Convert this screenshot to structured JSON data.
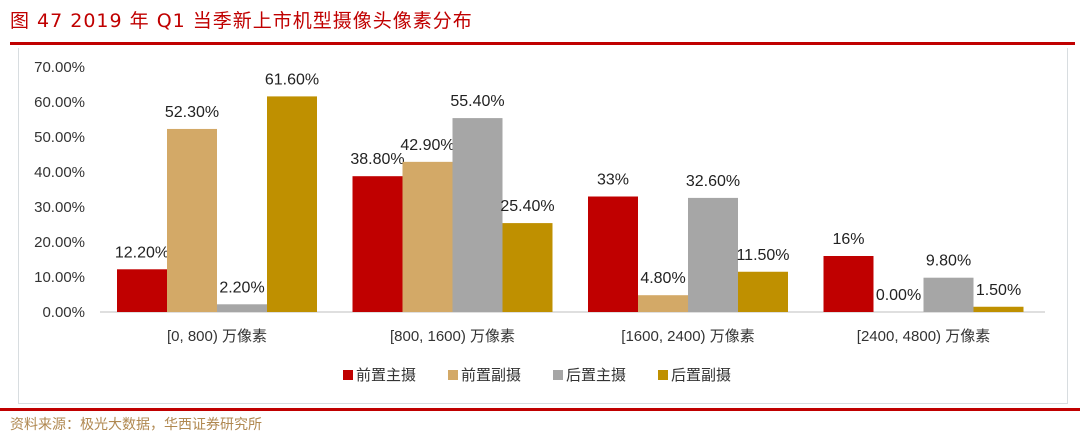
{
  "title": "图 47   2019 年 Q1 当季新上市机型摄像头像素分布",
  "source": "资料来源：极光大数据，华西证券研究所",
  "chart_data": {
    "type": "bar",
    "categories": [
      "[0, 800) 万像素",
      "[800, 1600) 万像素",
      "[1600, 2400) 万像素",
      "[2400, 4800) 万像素"
    ],
    "series": [
      {
        "name": "前置主摄",
        "color": "#c00000",
        "values": [
          12.2,
          38.8,
          33,
          16
        ],
        "labels": [
          "12.20%",
          "38.80%",
          "33%",
          "16%"
        ]
      },
      {
        "name": "前置副摄",
        "color": "#d3a967",
        "values": [
          52.3,
          42.9,
          4.8,
          0
        ],
        "labels": [
          "52.30%",
          "42.90%",
          "4.80%",
          "0.00%"
        ]
      },
      {
        "name": "后置主摄",
        "color": "#a6a6a6",
        "values": [
          2.2,
          55.4,
          32.6,
          9.8
        ],
        "labels": [
          "2.20%",
          "55.40%",
          "32.60%",
          "9.80%"
        ]
      },
      {
        "name": "后置副摄",
        "color": "#bf9000",
        "values": [
          61.6,
          25.4,
          11.5,
          1.5
        ],
        "labels": [
          "61.60%",
          "25.40%",
          "11.50%",
          "1.50%"
        ]
      }
    ],
    "yticks": [
      "0.00%",
      "10.00%",
      "20.00%",
      "30.00%",
      "40.00%",
      "50.00%",
      "60.00%",
      "70.00%"
    ],
    "ylim": [
      0,
      70
    ],
    "grid": false,
    "legend": "bottom"
  }
}
